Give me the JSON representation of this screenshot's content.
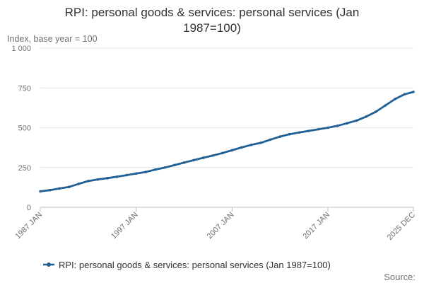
{
  "chart_data": {
    "type": "line",
    "title_line1": "RPI: personal goods & services: personal services (Jan",
    "title_line2": "1987=100)",
    "ylabel": "Index, base year = 100",
    "ylim": [
      0,
      1000
    ],
    "yticks": [
      {
        "value": 0,
        "label": "0"
      },
      {
        "value": 250,
        "label": "250"
      },
      {
        "value": 500,
        "label": "500"
      },
      {
        "value": 750,
        "label": "750"
      },
      {
        "value": 1000,
        "label": "1 000"
      }
    ],
    "xlim": [
      1987.0,
      2025.92
    ],
    "xticks": [
      {
        "value": 1987.0,
        "label": "1987 JAN"
      },
      {
        "value": 1997.0,
        "label": "1997 JAN"
      },
      {
        "value": 2007.0,
        "label": "2007 JAN"
      },
      {
        "value": 2017.0,
        "label": "2017 JAN"
      },
      {
        "value": 2025.92,
        "label": "2025 DEC"
      }
    ],
    "grid": true,
    "legend_position": "bottom",
    "series": [
      {
        "name": "RPI: personal goods & services: personal services (Jan 1987=100)",
        "color": "#206095",
        "x": [
          1987.0,
          1988.0,
          1989.0,
          1990.0,
          1991.0,
          1992.0,
          1993.0,
          1994.0,
          1995.0,
          1996.0,
          1997.0,
          1998.0,
          1999.0,
          2000.0,
          2001.0,
          2002.0,
          2003.0,
          2004.0,
          2005.0,
          2006.0,
          2007.0,
          2008.0,
          2009.0,
          2010.0,
          2011.0,
          2012.0,
          2013.0,
          2014.0,
          2015.0,
          2016.0,
          2017.0,
          2018.0,
          2019.0,
          2020.0,
          2021.0,
          2022.0,
          2023.0,
          2024.0,
          2025.0,
          2025.92
        ],
        "values": [
          100,
          108,
          118,
          128,
          147,
          165,
          175,
          183,
          192,
          202,
          212,
          222,
          237,
          250,
          265,
          281,
          296,
          311,
          325,
          341,
          358,
          376,
          392,
          405,
          425,
          444,
          459,
          470,
          480,
          490,
          500,
          512,
          528,
          545,
          570,
          600,
          640,
          680,
          710,
          725
        ]
      }
    ],
    "legend_label": "RPI: personal goods & services: personal services (Jan 1987=100)",
    "source_label": "Source:"
  }
}
